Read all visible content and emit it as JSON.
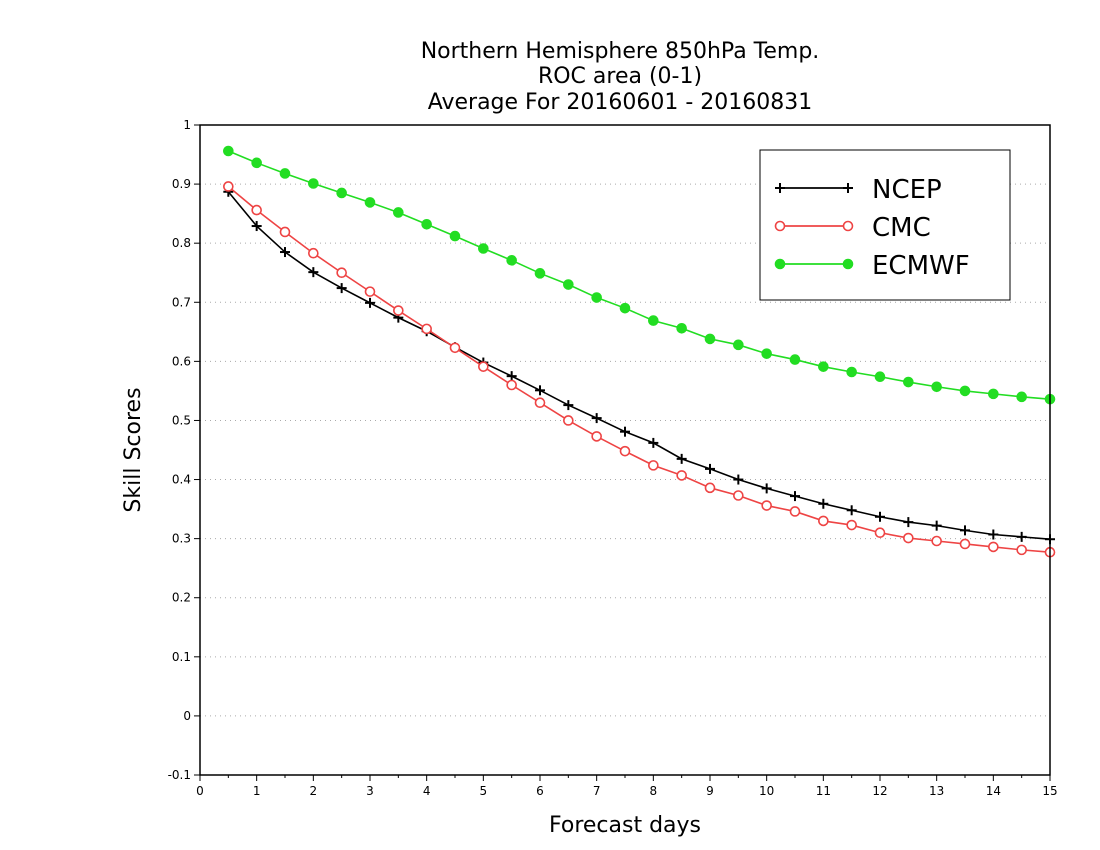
{
  "chart_data": {
    "type": "line",
    "title_lines": [
      "Northern Hemisphere 850hPa Temp.",
      "ROC area (0-1)",
      "Average For 20160601 - 20160831"
    ],
    "xlabel": "Forecast days",
    "ylabel": "Skill Scores",
    "xlim": [
      0,
      15
    ],
    "ylim": [
      -0.1,
      1
    ],
    "x_ticks": [
      0,
      1,
      2,
      3,
      4,
      5,
      6,
      7,
      8,
      9,
      10,
      11,
      12,
      13,
      14,
      15
    ],
    "x_tick_labels": [
      "0",
      "1",
      "2",
      "3",
      "4",
      "5",
      "6",
      "7",
      "8",
      "9",
      "10",
      "11",
      "12",
      "13",
      "14",
      "15"
    ],
    "y_ticks": [
      -0.1,
      0,
      0.1,
      0.2,
      0.3,
      0.4,
      0.5,
      0.6,
      0.7,
      0.8,
      0.9,
      1
    ],
    "y_tick_labels": [
      "-0.1",
      "0",
      "0.1",
      "0.2",
      "0.3",
      "0.4",
      "0.5",
      "0.6",
      "0.7",
      "0.8",
      "0.9",
      "1"
    ],
    "grid": "horizontal dotted",
    "legend_position": "top-right",
    "x": [
      0.5,
      1,
      1.5,
      2,
      2.5,
      3,
      3.5,
      4,
      4.5,
      5,
      5.5,
      6,
      6.5,
      7,
      7.5,
      8,
      8.5,
      9,
      9.5,
      10,
      10.5,
      11,
      11.5,
      12,
      12.5,
      13,
      13.5,
      14,
      14.5,
      15
    ],
    "series": [
      {
        "name": "NCEP",
        "color": "#000000",
        "marker": "plus",
        "values": [
          0.887,
          0.829,
          0.785,
          0.751,
          0.724,
          0.699,
          0.674,
          0.651,
          0.624,
          0.598,
          0.575,
          0.551,
          0.526,
          0.504,
          0.481,
          0.462,
          0.435,
          0.418,
          0.4,
          0.385,
          0.372,
          0.359,
          0.348,
          0.337,
          0.328,
          0.322,
          0.314,
          0.307,
          0.303,
          0.299
        ]
      },
      {
        "name": "CMC",
        "color": "#ee4444",
        "marker": "open-circle",
        "values": [
          0.896,
          0.856,
          0.819,
          0.783,
          0.75,
          0.718,
          0.686,
          0.655,
          0.623,
          0.591,
          0.56,
          0.53,
          0.5,
          0.473,
          0.448,
          0.424,
          0.407,
          0.386,
          0.373,
          0.356,
          0.346,
          0.33,
          0.323,
          0.31,
          0.301,
          0.296,
          0.291,
          0.286,
          0.281,
          0.277
        ]
      },
      {
        "name": "ECMWF",
        "color": "#22dd22",
        "marker": "filled-circle",
        "values": [
          0.956,
          0.936,
          0.918,
          0.901,
          0.885,
          0.869,
          0.852,
          0.832,
          0.812,
          0.791,
          0.771,
          0.749,
          0.73,
          0.708,
          0.69,
          0.669,
          0.656,
          0.638,
          0.628,
          0.613,
          0.603,
          0.591,
          0.582,
          0.574,
          0.565,
          0.557,
          0.55,
          0.545,
          0.54,
          0.536
        ]
      }
    ]
  }
}
